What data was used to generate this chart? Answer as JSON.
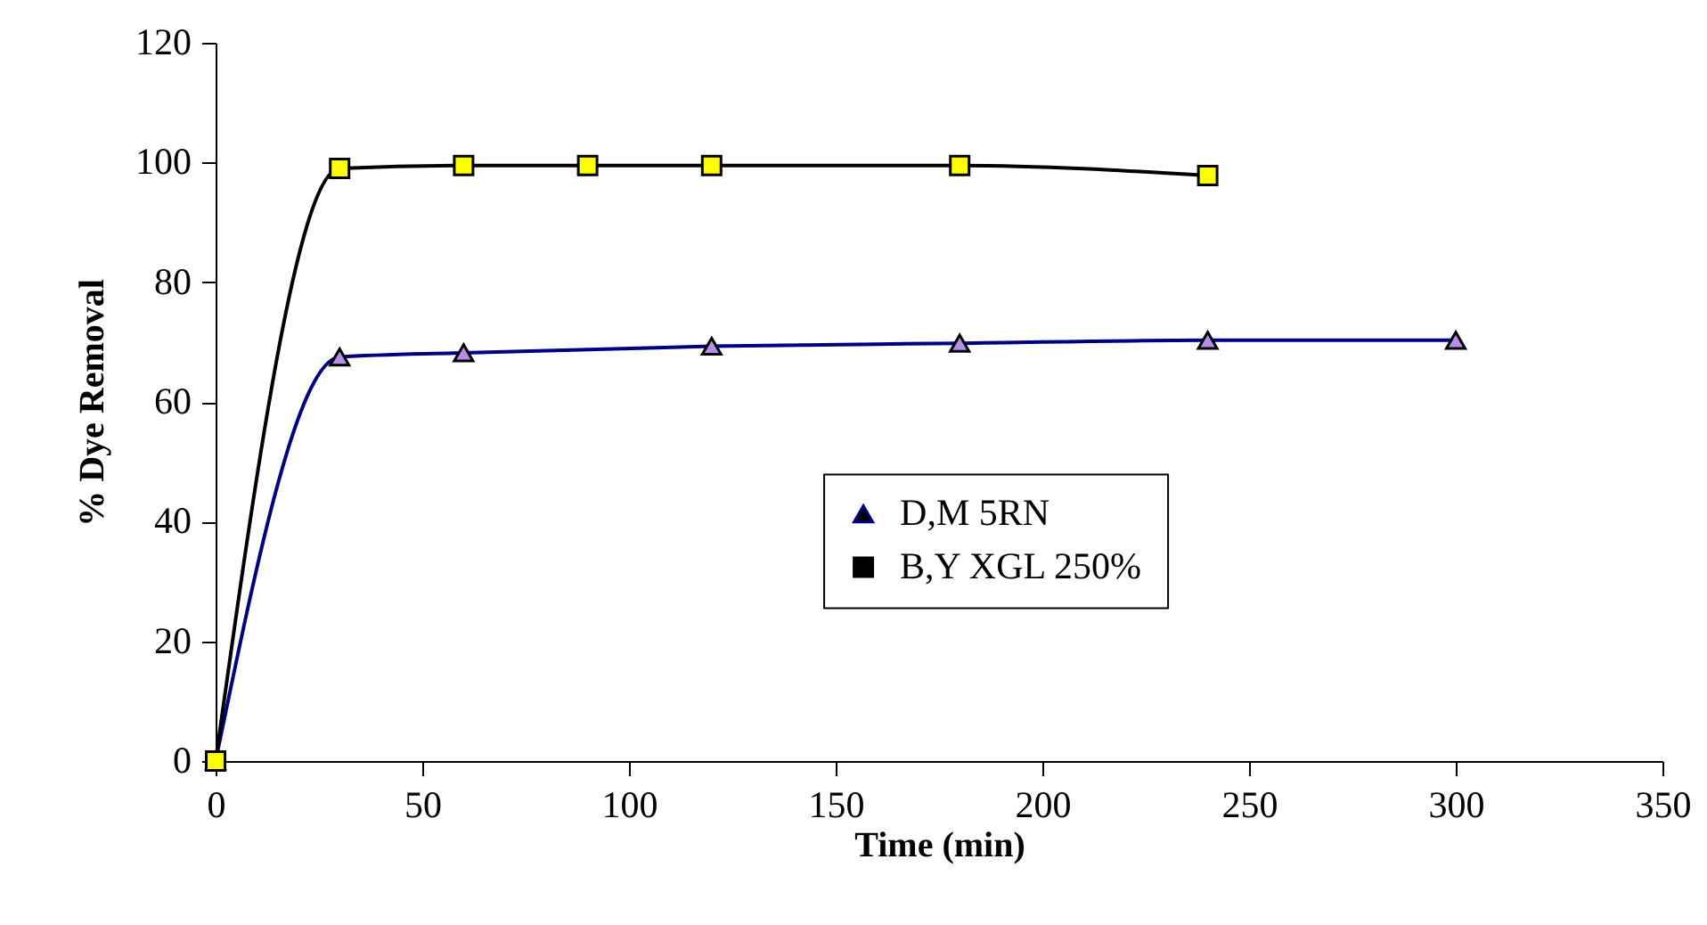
{
  "chart_data": {
    "type": "line",
    "xlabel": "Time (min)",
    "ylabel": "% Dye Removal",
    "xlim": [
      0,
      350
    ],
    "xticks": [
      0,
      50,
      100,
      150,
      200,
      250,
      300,
      350
    ],
    "ylim": [
      0,
      120
    ],
    "yticks": [
      0,
      20,
      40,
      60,
      80,
      100,
      120
    ],
    "grid": false,
    "legend": "right",
    "series": [
      {
        "name": "D,M 5RN",
        "color": "#000080",
        "marker": "triangle",
        "colors": [
          "#b38fe6",
          "#b38fe6",
          "#b38fe6",
          "#b38fe6",
          "#b38fe6",
          "#b38fe6",
          "#b38fe6"
        ],
        "x": [
          0,
          30,
          60,
          120,
          180,
          240,
          300
        ],
        "values": [
          0,
          67.5,
          68.2,
          69.3,
          69.8,
          70.3,
          70.3
        ]
      },
      {
        "name": "B,Y XGL 250%",
        "color": "#000000",
        "marker": "square",
        "colors": [
          "#ffff00",
          "#ffff00",
          "#ffff00",
          "#ffff00",
          "#ffff00",
          "#ffff00",
          "#ffff00"
        ],
        "x": [
          0,
          30,
          60,
          90,
          120,
          180,
          240
        ],
        "values": [
          0,
          99,
          99.5,
          99.5,
          99.5,
          99.5,
          97.8
        ]
      }
    ]
  }
}
